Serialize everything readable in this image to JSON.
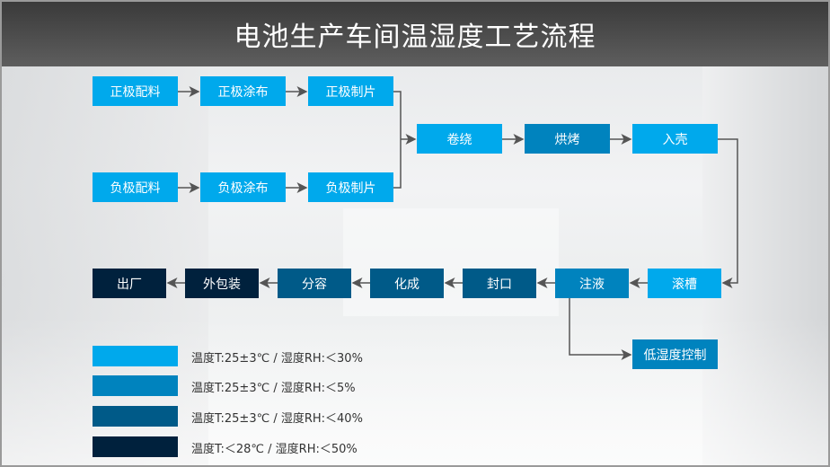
{
  "title": "电池生产车间温湿度工艺流程",
  "colors": {
    "light": "#00a9ec",
    "medium": "#0083be",
    "dark": "#005a88",
    "navy": "#00213d"
  },
  "steps": {
    "pos_mix": "正极配料",
    "pos_coat": "正极涂布",
    "pos_sheet": "正极制片",
    "neg_mix": "负极配料",
    "neg_coat": "负极涂布",
    "neg_sheet": "负极制片",
    "wind": "卷绕",
    "bake": "烘烤",
    "case": "入壳",
    "groove": "滚槽",
    "inject": "注液",
    "seal": "封口",
    "form": "化成",
    "grade": "分容",
    "pack": "外包装",
    "ship": "出厂",
    "low_humid": "低湿度控制"
  },
  "legend": [
    {
      "color": "#00a9ec",
      "text": "温度T:25±3℃  /  湿度RH:＜30%"
    },
    {
      "color": "#0083be",
      "text": "温度T:25±3℃  /  湿度RH:＜5%"
    },
    {
      "color": "#005a88",
      "text": "温度T:25±3℃  /  湿度RH:＜40%"
    },
    {
      "color": "#00213d",
      "text": "温度T:＜28℃  /  湿度RH:＜50%"
    }
  ]
}
